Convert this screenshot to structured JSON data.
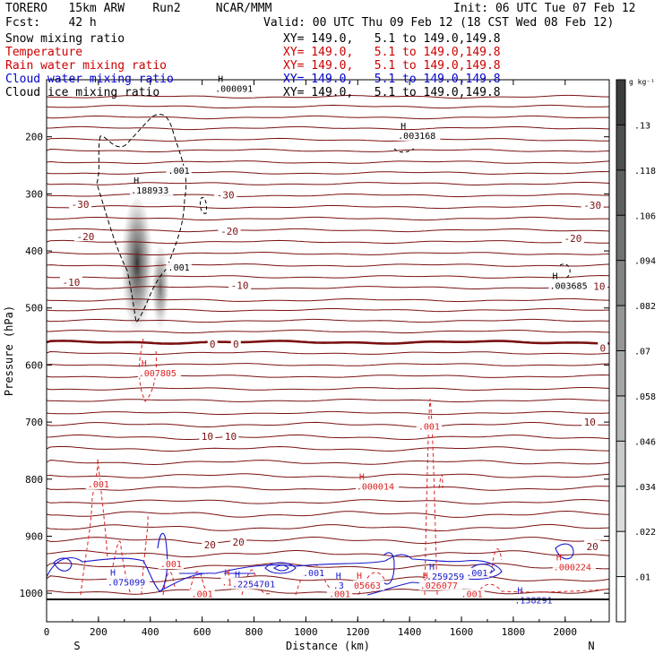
{
  "header": {
    "model": "TORERO   15km ARW    Run2     NCAR/MMM",
    "init": "Init: 06 UTC Tue 07 Feb 12",
    "fcst": "Fcst:    42 h",
    "valid": "Valid: 00 UTC Thu 09 Feb 12 (18 CST Wed 08 Feb 12)"
  },
  "fields": [
    {
      "name": "Snow mixing ratio",
      "xy": "XY= 149.0,   5.1 to 149.0,149.8",
      "color": "#000000"
    },
    {
      "name": "Temperature",
      "xy": "XY= 149.0,   5.1 to 149.0,149.8",
      "color": "#cc0000"
    },
    {
      "name": "Rain water mixing ratio",
      "xy": "XY= 149.0,   5.1 to 149.0,149.8",
      "color": "#cc0000"
    },
    {
      "name": "Cloud water mixing ratio",
      "xy": "XY= 149.0,   5.1 to 149.0,149.8",
      "color": "#0000cc"
    },
    {
      "name": "Cloud ice mixing ratio",
      "xy": "XY= 149.0,   5.1 to 149.0,149.8",
      "color": "#000000"
    }
  ],
  "colors": {
    "temperature": "#7a1010",
    "rain": "#dd2222",
    "cloud_water": "#1a1acc",
    "cloud_ice": "#000000",
    "snow_shade": "#333333"
  },
  "colorbar": {
    "unit": "g kg⁻¹",
    "ticks": [
      ".13",
      ".118",
      ".106",
      ".094",
      ".082",
      ".07",
      ".058",
      ".046",
      ".034",
      ".022",
      ".01"
    ]
  },
  "chart_data": {
    "type": "contour-cross-section",
    "xlabel": "Distance (km)",
    "ylabel": "Pressure (hPa)",
    "x_ticks": [
      "0",
      "200",
      "400",
      "600",
      "800",
      "1000",
      "1200",
      "1400",
      "1600",
      "1800",
      "2000"
    ],
    "y_ticks": [
      "200",
      "300",
      "400",
      "500",
      "600",
      "700",
      "800",
      "900",
      "1000"
    ],
    "xlim": [
      0,
      2170
    ],
    "ylim": [
      1050,
      100
    ],
    "ends": {
      "left": "S",
      "right": "N"
    },
    "temperature_labels": [
      {
        "text": "-30",
        "x": 130,
        "p": 318
      },
      {
        "text": "-30",
        "x": 690,
        "p": 302
      },
      {
        "text": "-30",
        "x": 2105,
        "p": 320
      },
      {
        "text": "-20",
        "x": 150,
        "p": 375
      },
      {
        "text": "-20",
        "x": 705,
        "p": 365
      },
      {
        "text": "-20",
        "x": 2030,
        "p": 378
      },
      {
        "text": "-10",
        "x": 95,
        "p": 455
      },
      {
        "text": "-10",
        "x": 745,
        "p": 460
      },
      {
        "text": "-10",
        "x": 2120,
        "p": 462
      },
      {
        "text": "0",
        "x": 640,
        "p": 563
      },
      {
        "text": "0",
        "x": 730,
        "p": 563
      },
      {
        "text": "0",
        "x": 2145,
        "p": 570
      },
      {
        "text": "10",
        "x": 620,
        "p": 725
      },
      {
        "text": "10",
        "x": 710,
        "p": 725
      },
      {
        "text": "10",
        "x": 2095,
        "p": 700
      },
      {
        "text": "20",
        "x": 630,
        "p": 915
      },
      {
        "text": "20",
        "x": 740,
        "p": 910
      },
      {
        "text": "20",
        "x": 2105,
        "p": 918
      }
    ],
    "max_labels": [
      {
        "h": "H",
        "value": ".000091",
        "x": 695,
        "p": 120,
        "field": "ice"
      },
      {
        "h": "H",
        "value": ".003168",
        "x": 1400,
        "p": 202,
        "field": "ice"
      },
      {
        "h": "H",
        "value": ".188933",
        "x": 370,
        "p": 298,
        "field": "snow"
      },
      {
        "h": "H",
        "value": ".003685",
        "x": 1985,
        "p": 465,
        "field": "ice"
      },
      {
        "h": "H",
        "value": ".007805",
        "x": 400,
        "p": 618,
        "field": "rain"
      },
      {
        "h": "H",
        "value": ".000014",
        "x": 1240,
        "p": 817,
        "field": "rain"
      },
      {
        "h": "H",
        "value": ".000224",
        "x": 2000,
        "p": 958,
        "field": "rain"
      },
      {
        "h": "H",
        "value": ".259259",
        "x": 1510,
        "p": 975,
        "field": "cloud_water"
      },
      {
        "h": "H",
        "value": ".026077",
        "x": 1485,
        "p": 990,
        "field": "rain"
      },
      {
        "h": "H",
        "value": ".138291",
        "x": 1850,
        "p": 1016,
        "field": "cloud_water"
      },
      {
        "h": "H",
        "value": ".075099",
        "x": 280,
        "p": 985,
        "field": "cloud_water"
      },
      {
        "h": "H",
        "value": ".12339",
        "x": 720,
        "p": 985,
        "field": "rain"
      },
      {
        "h": "H",
        "value": ".2254701",
        "x": 760,
        "p": 988,
        "field": "cloud_water"
      },
      {
        "h": "H",
        "value": ".3",
        "x": 1150,
        "p": 990,
        "field": "cloud_water"
      },
      {
        "h": "H",
        "value": "05663",
        "x": 1230,
        "p": 990,
        "field": "rain"
      }
    ],
    "contour_labels": [
      {
        "text": ".001",
        "x": 510,
        "p": 263,
        "field": "snow"
      },
      {
        "text": ".001",
        "x": 510,
        "p": 433,
        "field": "snow"
      },
      {
        "text": ".001",
        "x": 1475,
        "p": 712,
        "field": "rain"
      },
      {
        "text": ".001",
        "x": 200,
        "p": 813,
        "field": "rain"
      },
      {
        "text": ".001",
        "x": 480,
        "p": 953,
        "field": "rain"
      },
      {
        "text": ".001",
        "x": 1030,
        "p": 968,
        "field": "cloud_water"
      },
      {
        "text": ".001",
        "x": 1660,
        "p": 968,
        "field": "cloud_water"
      },
      {
        "text": ".001",
        "x": 600,
        "p": 1005,
        "field": "rain"
      },
      {
        "text": ".001",
        "x": 1130,
        "p": 1005,
        "field": "rain"
      },
      {
        "text": ".001",
        "x": 1640,
        "p": 1005,
        "field": "rain"
      }
    ]
  }
}
